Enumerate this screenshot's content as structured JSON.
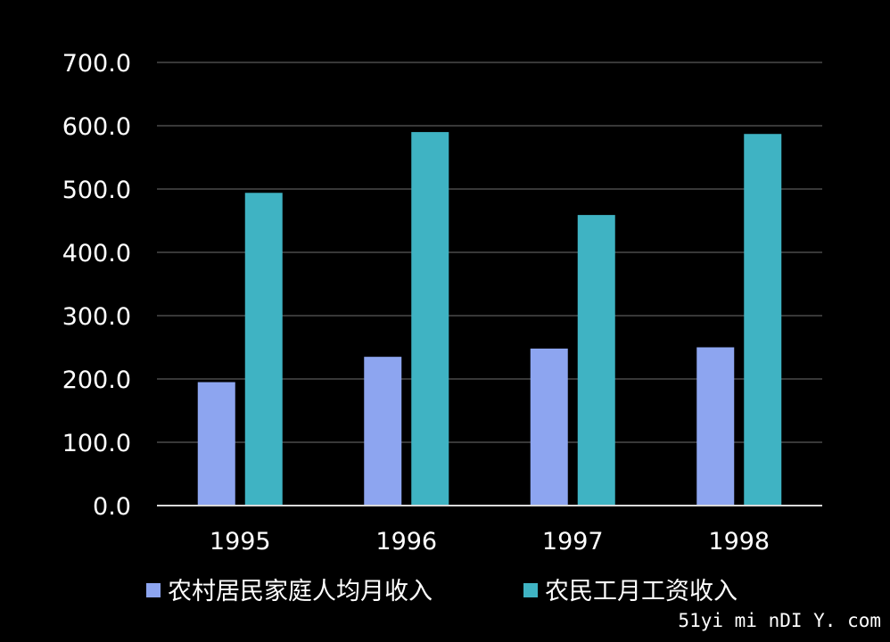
{
  "chart_data": {
    "type": "bar",
    "categories": [
      "1995",
      "1996",
      "1997",
      "1998"
    ],
    "series": [
      {
        "name": "农村居民家庭人均月收入",
        "color": "#8da5f0",
        "values": [
          195,
          235,
          248,
          250
        ]
      },
      {
        "name": "农民工月工资收入",
        "color": "#3fb3c3",
        "values": [
          494,
          590,
          459,
          587
        ]
      }
    ],
    "y_ticks": [
      "0.0",
      "100.0",
      "200.0",
      "300.0",
      "400.0",
      "500.0",
      "600.0",
      "700.0"
    ],
    "ylim": [
      0,
      700
    ],
    "grid": true,
    "legend_position": "bottom",
    "title": "",
    "xlabel": "",
    "ylabel": ""
  },
  "watermark": "51yi mi nDI Y. com"
}
